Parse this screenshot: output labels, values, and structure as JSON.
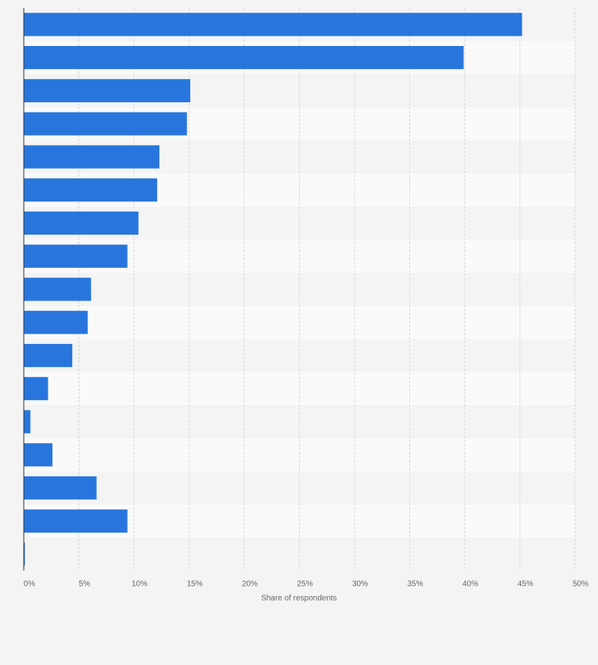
{
  "chart_data": {
    "type": "bar",
    "orientation": "horizontal",
    "x_label": "Share of respondents",
    "categories": [
      null,
      null,
      null,
      null,
      null,
      null,
      null,
      null,
      null,
      null,
      null,
      null,
      null,
      null,
      null,
      null,
      null
    ],
    "values": [
      45.2,
      39.9,
      15.1,
      14.8,
      12.3,
      12.1,
      10.4,
      9.4,
      6.1,
      5.8,
      4.4,
      2.2,
      0.6,
      2.6,
      6.6,
      9.4,
      0.1
    ],
    "color": "#2876dd",
    "xlim": [
      0,
      50
    ],
    "xticks": [
      {
        "value": 0,
        "label": "0%"
      },
      {
        "value": 5,
        "label": "5%"
      },
      {
        "value": 10,
        "label": "10%"
      },
      {
        "value": 15,
        "label": "15%"
      },
      {
        "value": 20,
        "label": "20%"
      },
      {
        "value": 25,
        "label": "25%"
      },
      {
        "value": 30,
        "label": "30%"
      },
      {
        "value": 35,
        "label": "35%"
      },
      {
        "value": 40,
        "label": "40%"
      },
      {
        "value": 45,
        "label": "45%"
      },
      {
        "value": 50,
        "label": "50%"
      }
    ],
    "grid": true
  }
}
